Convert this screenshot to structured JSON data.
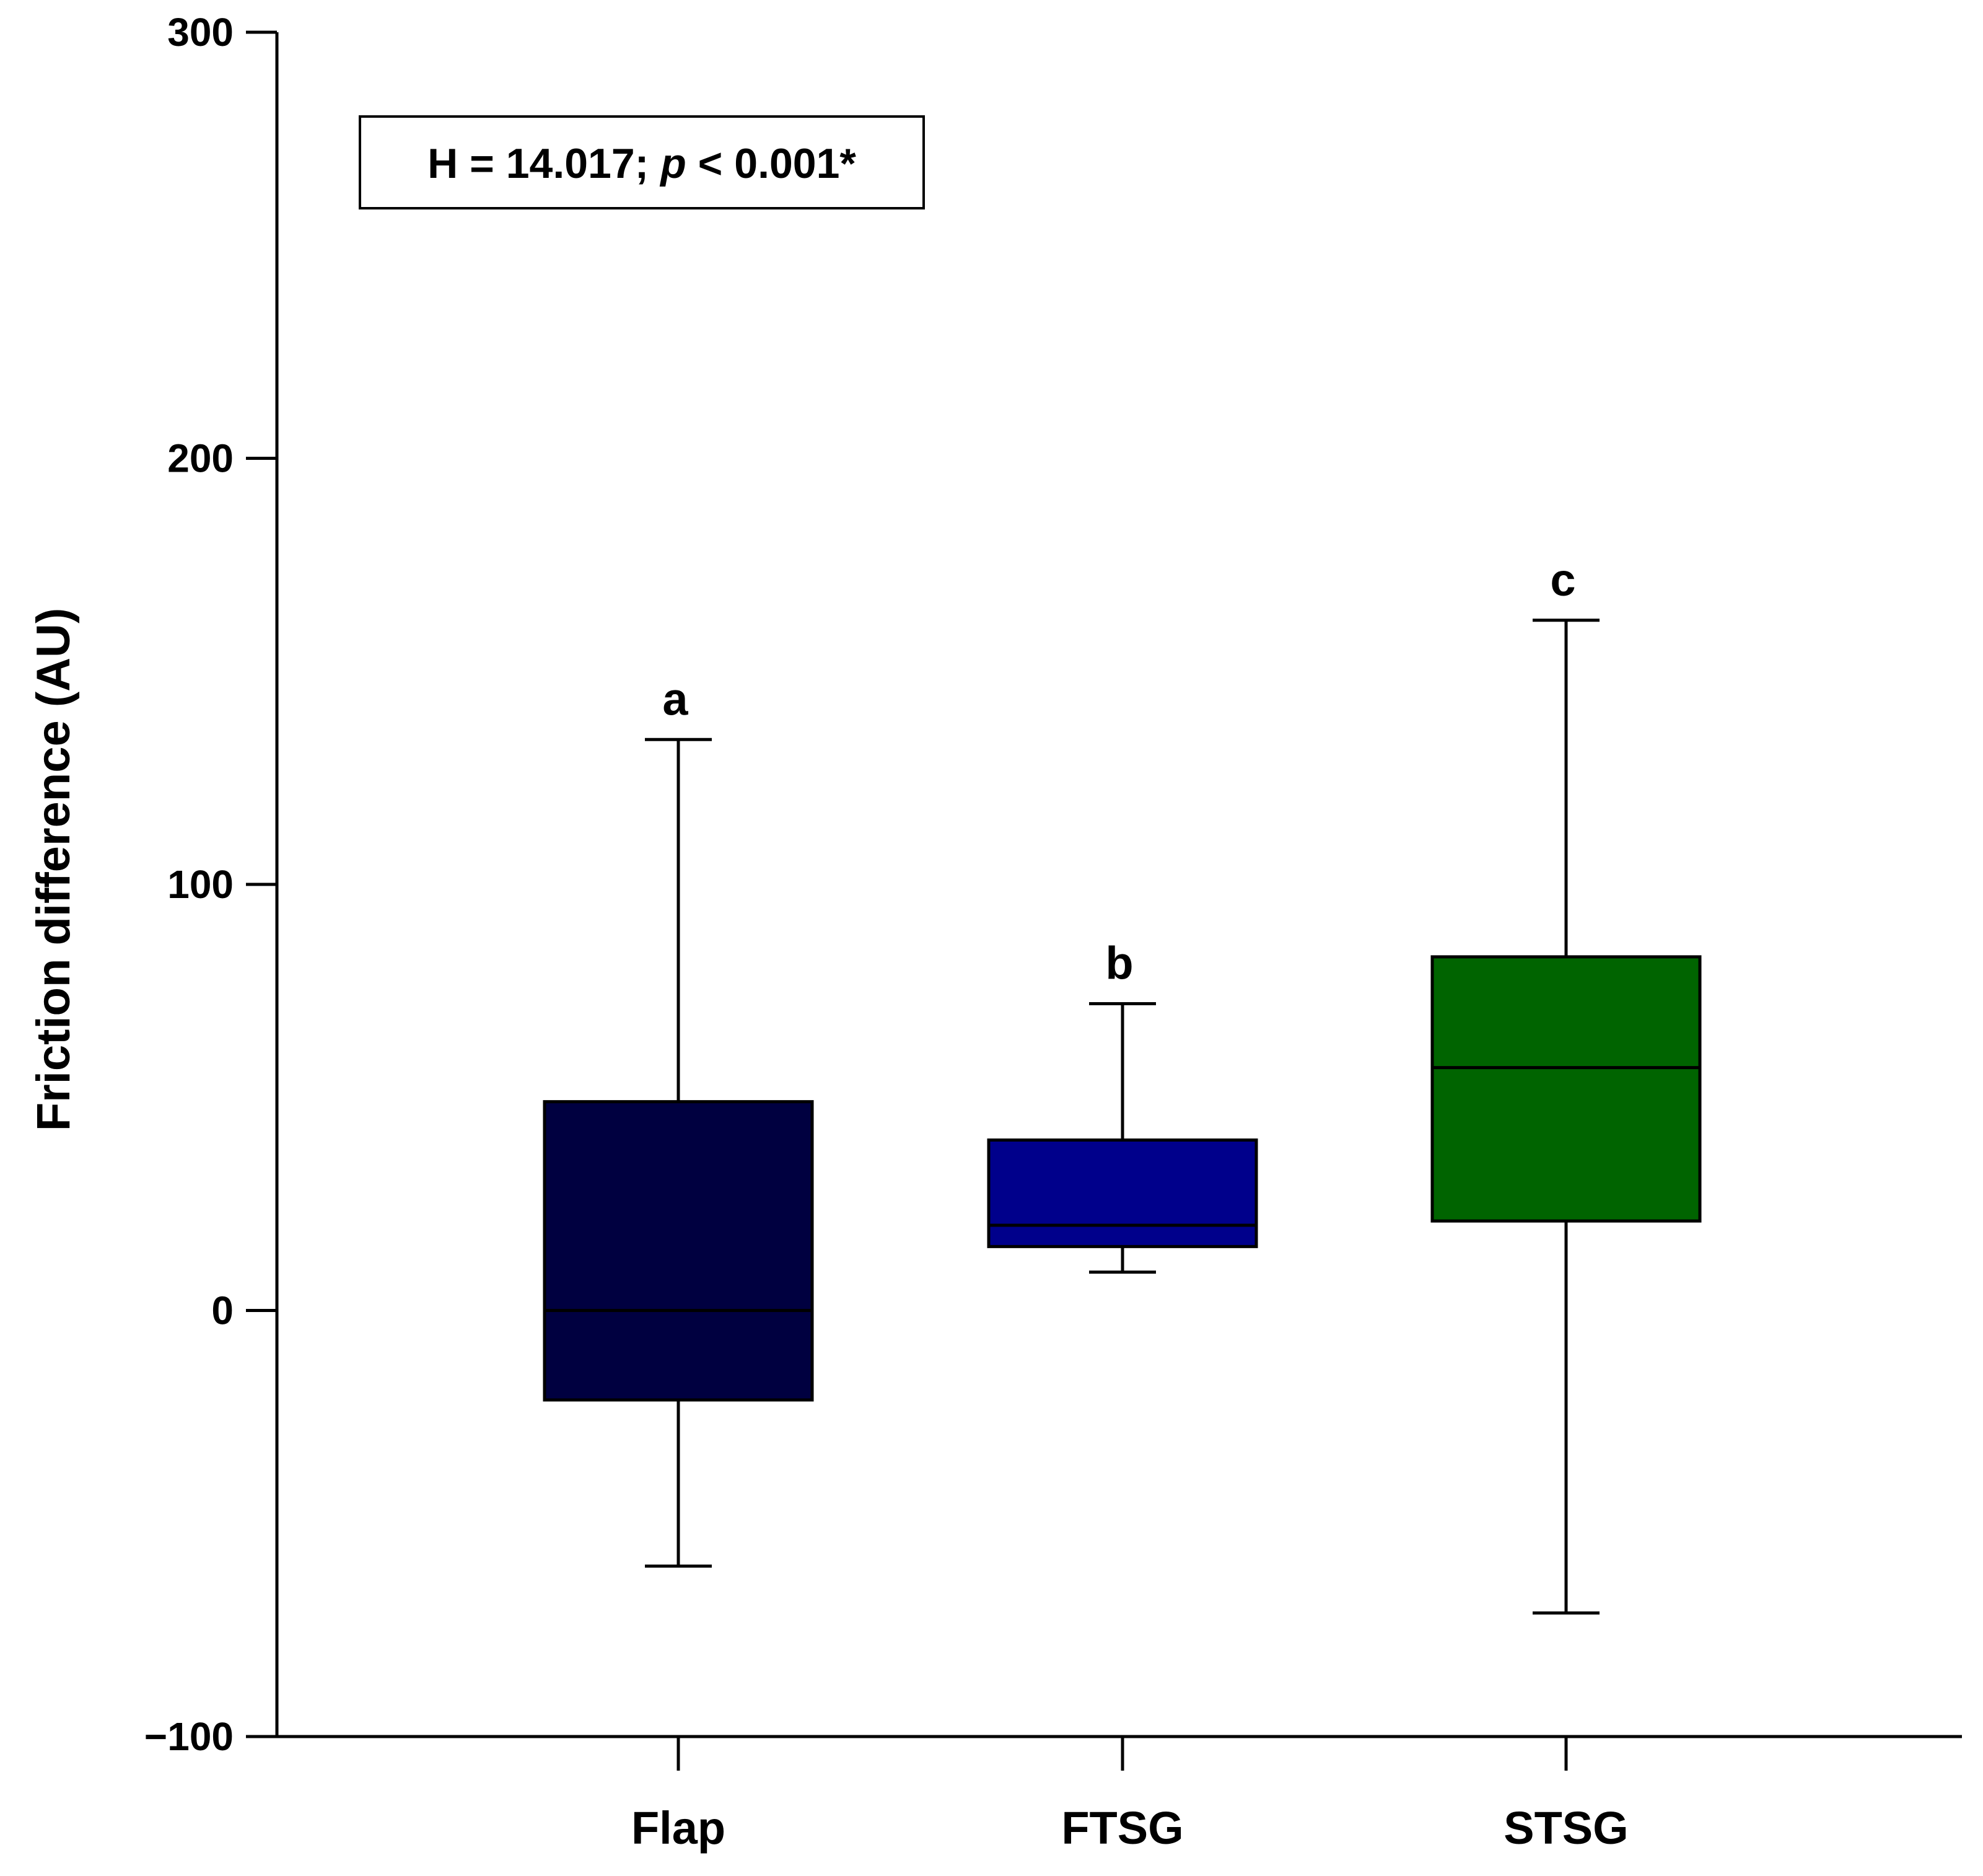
{
  "chart_data": {
    "type": "box",
    "title": "",
    "xlabel": "",
    "ylabel": "Friction difference (AU)",
    "ylim": [
      -100,
      300
    ],
    "yticks": [
      -100,
      0,
      100,
      200,
      300
    ],
    "ytick_labels": [
      "−100",
      "0",
      "100",
      "200",
      "300"
    ],
    "grid": false,
    "categories": [
      "Flap",
      "FTSG",
      "STSG"
    ],
    "boxes": [
      {
        "category": "Flap",
        "min": -60,
        "q1": -21,
        "median": 0,
        "q3": 49,
        "max": 134,
        "color": "#000040",
        "letter": "a"
      },
      {
        "category": "FTSG",
        "min": 9,
        "q1": 15,
        "median": 20,
        "q3": 40,
        "max": 72,
        "color": "#00008b",
        "letter": "b"
      },
      {
        "category": "STSG",
        "min": -71,
        "q1": 21,
        "median": 57,
        "q3": 83,
        "max": 162,
        "color": "#006400",
        "letter": "c"
      }
    ],
    "annotation": {
      "prefix": "H = 14.017; ",
      "italic": "p",
      "suffix": " < 0.001*"
    }
  }
}
